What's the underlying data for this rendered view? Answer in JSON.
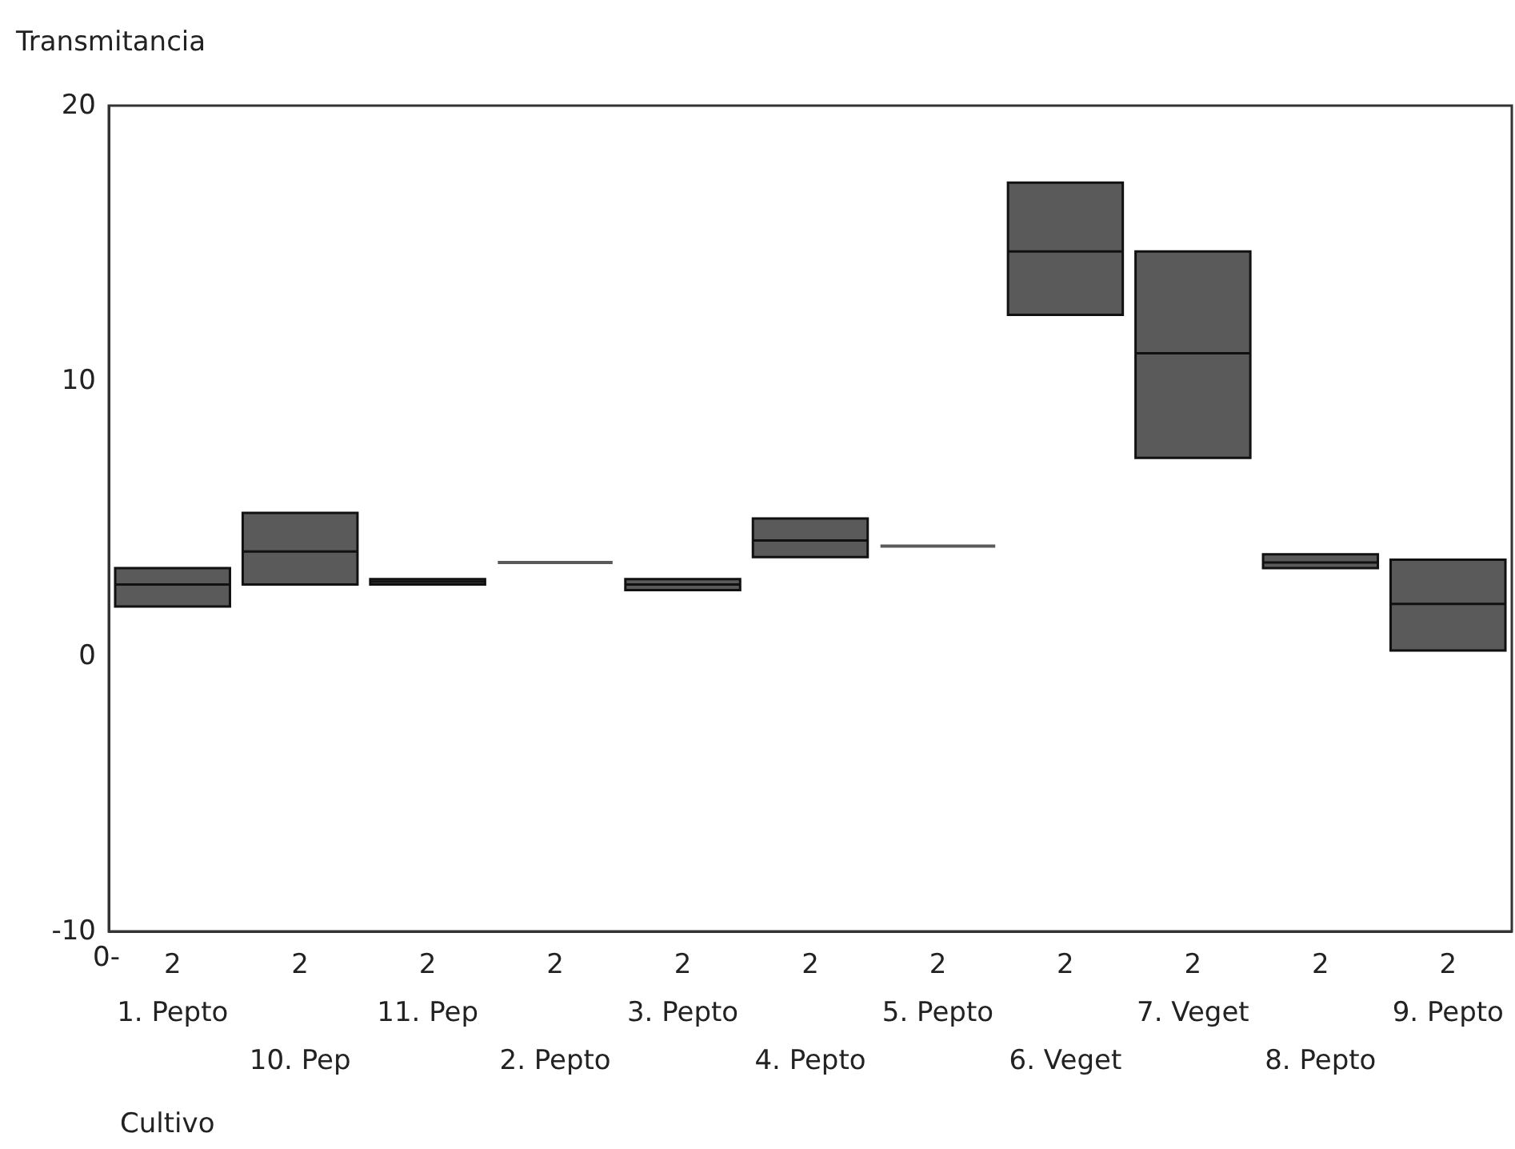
{
  "chart_data": {
    "type": "box",
    "ylabel": "Transmitancia",
    "xlabel": "Cultivo",
    "categories": [
      "2\n1. Pepto",
      "2\n10. Pep",
      "2\n11. Pep",
      "2\n2. Pepto",
      "2\n3. Pepto",
      "2\n4. Pepto",
      "2\n5. Pepto",
      "2\n6. Veget",
      "2\n7. Veget",
      "2\n8. Pepto",
      "2\n9. Pepto"
    ],
    "boxes": [
      {
        "low": 1.8,
        "q1": 1.8,
        "median": 2.6,
        "q3": 3.2,
        "high": 3.2
      },
      {
        "low": 2.6,
        "q1": 2.6,
        "median": 3.8,
        "q3": 5.2,
        "high": 5.2
      },
      {
        "low": 2.6,
        "q1": 2.6,
        "median": 2.7,
        "q3": 2.8,
        "high": 2.8
      },
      {
        "low": 3.4,
        "q1": 3.4,
        "median": 3.4,
        "q3": 3.4,
        "high": 3.4
      },
      {
        "low": 2.4,
        "q1": 2.4,
        "median": 2.6,
        "q3": 2.8,
        "high": 2.8
      },
      {
        "low": 3.6,
        "q1": 3.6,
        "median": 4.2,
        "q3": 5.0,
        "high": 5.0
      },
      {
        "low": 4.0,
        "q1": 4.0,
        "median": 4.0,
        "q3": 4.0,
        "high": 4.0
      },
      {
        "low": 12.4,
        "q1": 12.4,
        "median": 14.7,
        "q3": 17.2,
        "high": 17.2
      },
      {
        "low": 7.2,
        "q1": 7.2,
        "median": 11.0,
        "q3": 14.7,
        "high": 14.7
      },
      {
        "low": 3.2,
        "q1": 3.2,
        "median": 3.4,
        "q3": 3.7,
        "high": 3.7
      },
      {
        "low": 0.2,
        "q1": 0.2,
        "median": 1.9,
        "q3": 3.5,
        "high": 3.5
      }
    ],
    "color": "#5a5a5a",
    "ylim": [
      -10,
      20
    ],
    "yticks": [
      -10,
      0,
      10,
      20
    ],
    "grid": false,
    "annotations": [
      "0-"
    ]
  }
}
